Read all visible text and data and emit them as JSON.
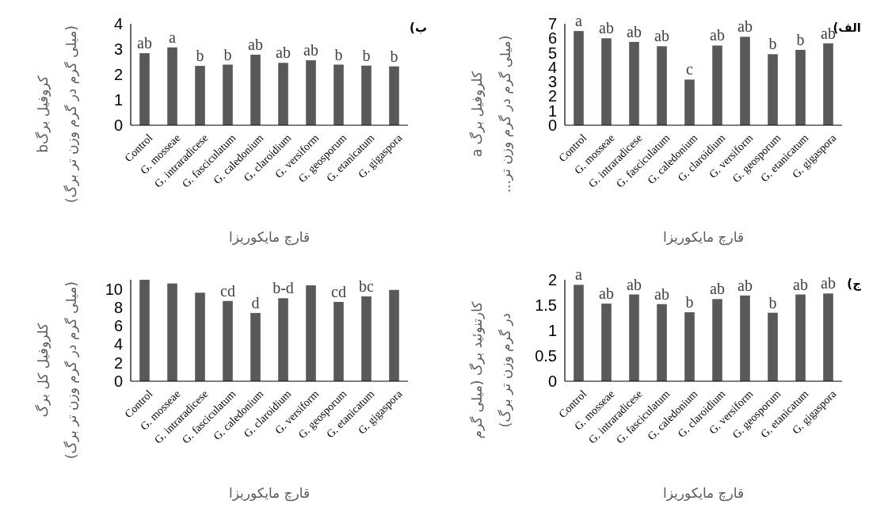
{
  "chart_data": [
    {
      "type": "bar",
      "title": "الف)",
      "ylabel": "کلروفیل برگ a\n(میلی گرم در گرم وزن تر...",
      "xlabel": "قارچ مایکوریزا",
      "categories": [
        "Control",
        "G. mosseae",
        "G. intraradicese",
        "G. fasciculatum",
        "G. caledonium",
        "G. claroidium",
        "G. versiform",
        "G. geosporum",
        "G. etanicatum",
        "G. gigaspora"
      ],
      "values": [
        6.5,
        6.0,
        5.75,
        5.45,
        3.15,
        5.5,
        6.1,
        4.9,
        5.2,
        5.65
      ],
      "color": "#595959",
      "ylim": [
        0,
        7
      ],
      "yticks": [
        0,
        1,
        2,
        3,
        4,
        5,
        6,
        7
      ],
      "value_labels": [
        "a",
        "ab",
        "ab",
        "ab",
        "c",
        "ab",
        "ab",
        "b",
        "b",
        "ab"
      ]
    },
    {
      "type": "bar",
      "title": "ب)",
      "ylabel": "کروفیل برگb\n(میلی گرم در گرم وزن تر برگ)",
      "xlabel": "قارچ مایکوریزا",
      "categories": [
        "Control",
        "G. mosseae",
        "G. intraradicese",
        "G. fasciculatum",
        "G. caledonium",
        "G. claroidium",
        "G. versiform",
        "G. geosporum",
        "G. etanicatum",
        "G. gigaspora"
      ],
      "values": [
        2.84,
        3.07,
        2.34,
        2.39,
        2.78,
        2.46,
        2.56,
        2.39,
        2.35,
        2.32
      ],
      "color": "#595959",
      "ylim": [
        0,
        4
      ],
      "yticks": [
        0,
        1,
        2,
        3,
        4
      ],
      "value_labels": [
        "ab",
        "a",
        "b",
        "b",
        "ab",
        "ab",
        "ab",
        "b",
        "b",
        "b"
      ]
    },
    {
      "type": "bar",
      "title": "ج)",
      "ylabel": "کارتنوئید برگ (میلی گرم\nدر گرم وزن تر برگ)",
      "xlabel": "قارچ مایکوریزا",
      "categories": [
        "Control",
        "G. mosseae",
        "G. intraradicese",
        "G. fasciculatum",
        "G. caledonium",
        "G. claroidium",
        "G. versiform",
        "G. geosporum",
        "G. etanicatum",
        "G. gigaspora"
      ],
      "values": [
        1.9,
        1.53,
        1.71,
        1.52,
        1.36,
        1.62,
        1.69,
        1.35,
        1.71,
        1.73
      ],
      "color": "#595959",
      "ylim": [
        0,
        2
      ],
      "yticks": [
        0,
        0.5,
        1,
        1.5,
        2
      ],
      "value_labels": [
        "a",
        "ab",
        "ab",
        "ab",
        "b",
        "ab",
        "ab",
        "b",
        "ab",
        "ab"
      ]
    },
    {
      "type": "bar",
      "ylabel": "کلروفیل کل برگ\n(میلی گرم در گرم وزن تر برگ)",
      "xlabel": "قارچ مایکوریزا",
      "categories": [
        "Control",
        "G. mosseae",
        "G. intraradicese",
        "G. fasciculatum",
        "G. caledonium",
        "G. claroidium",
        "G. versiform",
        "G. geosporum",
        "G. etanicatum",
        "G. gigaspora"
      ],
      "values": [
        11,
        10.6,
        9.6,
        8.7,
        7.4,
        9.0,
        10.4,
        8.6,
        9.2,
        9.9
      ],
      "color": "#595959",
      "ylim": [
        0,
        11
      ],
      "yticks": [
        0,
        2,
        4,
        6,
        8,
        10
      ],
      "value_labels": [
        null,
        null,
        null,
        "cd",
        "d",
        "b-d",
        null,
        "cd",
        "bc",
        null
      ]
    }
  ]
}
